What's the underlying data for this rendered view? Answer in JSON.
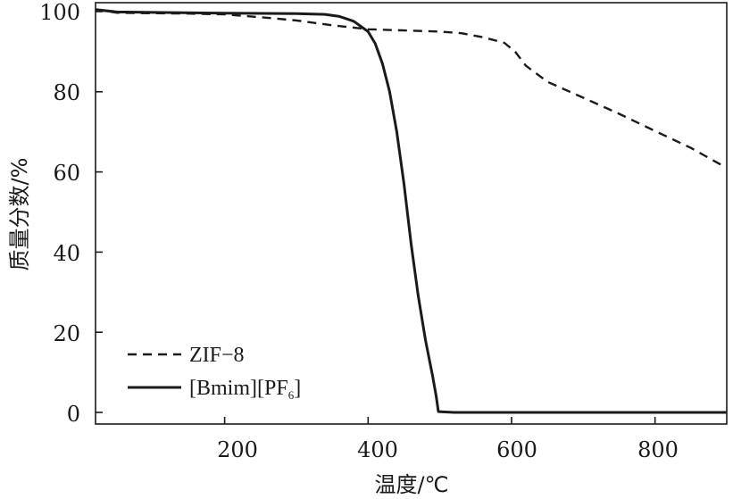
{
  "chart_data": {
    "type": "line",
    "xlabel": "温度/℃",
    "ylabel": "质量分数/%",
    "xlim": [
      20,
      900
    ],
    "ylim": [
      0,
      102
    ],
    "xticks": [
      200,
      400,
      600,
      800
    ],
    "yticks": [
      0,
      20,
      40,
      60,
      80,
      100
    ],
    "tick_labels_x": [
      "200",
      "400",
      "600",
      "800"
    ],
    "tick_labels_y": [
      "0",
      "20",
      "40",
      "60",
      "80",
      "100"
    ],
    "grid": false,
    "legend_position": "bottom-left",
    "legend_text": {
      "zif8": "ZIF−8",
      "bmim_main": "[Bmim][PF",
      "bmim_sub": "6",
      "bmim_tail": "]"
    },
    "series": [
      {
        "name": "ZIF−8",
        "style": "dashed",
        "color": "#1a1a1a",
        "x": [
          20,
          50,
          100,
          150,
          200,
          250,
          300,
          350,
          400,
          450,
          500,
          530,
          560,
          590,
          605,
          620,
          650,
          700,
          750,
          800,
          850,
          895
        ],
        "y": [
          100.5,
          99.7,
          99.6,
          99.5,
          99.3,
          98.6,
          97.8,
          96.6,
          95.6,
          95.3,
          95.0,
          94.6,
          93.6,
          92.2,
          90.0,
          86.5,
          82.5,
          78.5,
          74.5,
          70.2,
          66.0,
          61.5
        ]
      },
      {
        "name": "[Bmim][PF6]",
        "style": "solid",
        "color": "#1a1a1a",
        "x": [
          20,
          50,
          100,
          200,
          300,
          340,
          360,
          380,
          400,
          410,
          420,
          430,
          440,
          450,
          460,
          470,
          480,
          490,
          495,
          498,
          520,
          600,
          700,
          800,
          900
        ],
        "y": [
          100.5,
          99.9,
          99.8,
          99.6,
          99.5,
          99.3,
          98.8,
          97.6,
          95.0,
          92.0,
          87.0,
          80.0,
          70.0,
          57.0,
          42.0,
          29.0,
          18.0,
          9.0,
          4.0,
          0.2,
          0,
          0,
          0,
          0,
          0
        ]
      }
    ]
  }
}
